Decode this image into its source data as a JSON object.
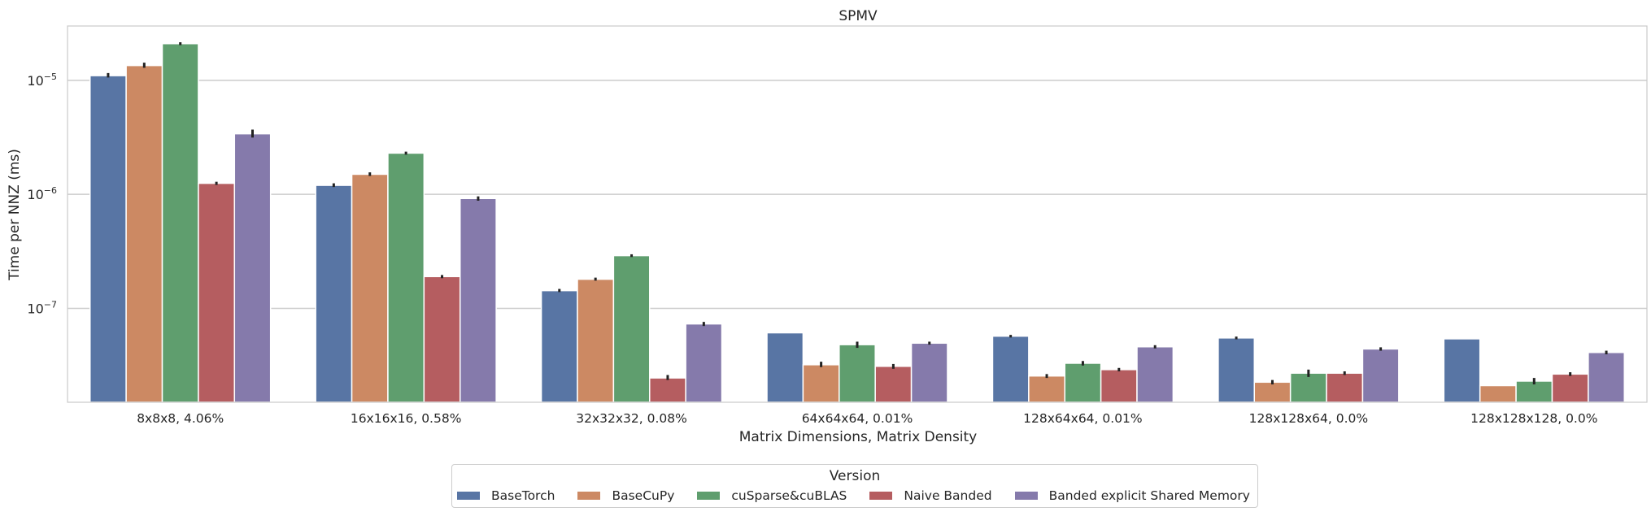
{
  "chart_data": {
    "type": "bar",
    "title": "SPMV",
    "xlabel": "Matrix Dimensions, Matrix Density",
    "ylabel": "Time per NNZ (ms)",
    "yscale": "log",
    "ylim": [
      1.5e-08,
      3e-05
    ],
    "yticks": [
      {
        "value": 1e-07,
        "base": "10",
        "exp": "−7"
      },
      {
        "value": 1e-06,
        "base": "10",
        "exp": "−6"
      },
      {
        "value": 1e-05,
        "base": "10",
        "exp": "−5"
      }
    ],
    "grid": "horizontal",
    "categories": [
      "8x8x8, 4.06%",
      "16x16x16, 0.58%",
      "32x32x32, 0.08%",
      "64x64x64, 0.01%",
      "128x64x64, 0.01%",
      "128x128x64, 0.0%",
      "128x128x128, 0.0%"
    ],
    "legend_title": "Version",
    "legend_position": "bottom-center",
    "series": [
      {
        "name": "BaseTorch",
        "color": "#5875a4",
        "values": [
          1.1e-05,
          1.2e-06,
          1.43e-07,
          6.1e-08,
          5.7e-08,
          5.5e-08,
          5.4e-08
        ],
        "err_low": [
          1.06e-05,
          1.16e-06,
          1.39e-07,
          null,
          5.55e-08,
          5.35e-08,
          null
        ],
        "err_high": [
          1.16e-05,
          1.25e-06,
          1.48e-07,
          null,
          5.85e-08,
          5.65e-08,
          null
        ]
      },
      {
        "name": "BaseCuPy",
        "color": "#cc8963",
        "values": [
          1.35e-05,
          1.5e-06,
          1.8e-07,
          3.2e-08,
          2.55e-08,
          2.25e-08,
          2.1e-08
        ],
        "err_low": [
          1.29e-05,
          1.45e-06,
          1.75e-07,
          3.05e-08,
          2.45e-08,
          2.15e-08,
          null
        ],
        "err_high": [
          1.43e-05,
          1.56e-06,
          1.86e-07,
          3.4e-08,
          2.65e-08,
          2.35e-08,
          null
        ]
      },
      {
        "name": "cuSparse&cuBLAS",
        "color": "#5f9e6e",
        "values": [
          2.1e-05,
          2.3e-06,
          2.9e-07,
          4.8e-08,
          3.3e-08,
          2.7e-08,
          2.3e-08
        ],
        "err_low": [
          2.04e-05,
          2.23e-06,
          2.82e-07,
          4.5e-08,
          3.15e-08,
          2.5e-08,
          2.15e-08
        ],
        "err_high": [
          2.16e-05,
          2.37e-06,
          2.98e-07,
          5.1e-08,
          3.45e-08,
          2.9e-08,
          2.45e-08
        ]
      },
      {
        "name": "Naive Banded",
        "color": "#b55d60",
        "values": [
          1.25e-06,
          1.9e-07,
          2.45e-08,
          3.1e-08,
          2.9e-08,
          2.7e-08,
          2.65e-08
        ],
        "err_low": [
          1.21e-06,
          1.84e-07,
          2.35e-08,
          2.95e-08,
          2.8e-08,
          2.6e-08,
          2.55e-08
        ],
        "err_high": [
          1.29e-06,
          1.96e-07,
          2.6e-08,
          3.25e-08,
          3e-08,
          2.8e-08,
          2.75e-08
        ]
      },
      {
        "name": "Banded explicit Shared Memory",
        "color": "#857aab",
        "values": [
          3.4e-06,
          9.2e-07,
          7.3e-08,
          4.95e-08,
          4.6e-08,
          4.4e-08,
          4.1e-08
        ],
        "err_low": [
          3.15e-06,
          8.8e-07,
          7e-08,
          4.8e-08,
          4.45e-08,
          4.25e-08,
          3.95e-08
        ],
        "err_high": [
          3.7e-06,
          9.6e-07,
          7.6e-08,
          5.1e-08,
          4.75e-08,
          4.55e-08,
          4.25e-08
        ]
      }
    ]
  }
}
